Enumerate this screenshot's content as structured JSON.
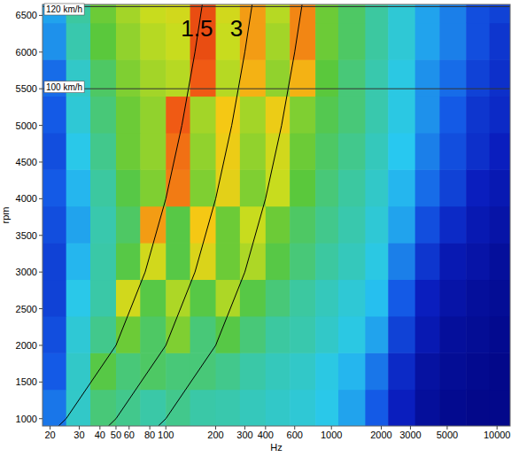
{
  "chart_data": {
    "type": "heatmap",
    "x_label": "Hz",
    "y_label": "rpm",
    "log": "x",
    "grid": false,
    "xlim": [
      18,
      12000
    ],
    "ylim": [
      900,
      6650
    ],
    "xticks": [
      20,
      30,
      40,
      50,
      60,
      80,
      100,
      200,
      300,
      400,
      600,
      1000,
      2000,
      3000,
      5000,
      10000
    ],
    "yticks": [
      1000,
      1500,
      2000,
      2500,
      3000,
      3500,
      4000,
      4500,
      5000,
      5500,
      6000,
      6500
    ],
    "heatmap": {
      "x_edges": [
        18,
        25,
        35,
        50,
        70,
        100,
        140,
        200,
        280,
        400,
        560,
        800,
        1100,
        1600,
        2200,
        3200,
        4500,
        6500,
        9000,
        12000
      ],
      "y_edges": [
        900,
        1400,
        1900,
        2400,
        2900,
        3400,
        3900,
        4400,
        4900,
        5400,
        5900,
        6400,
        6650
      ],
      "color_range": [
        0,
        100
      ],
      "cells": [
        [
          25,
          40,
          50,
          48,
          45,
          48,
          45,
          44,
          42,
          40,
          38,
          35,
          30,
          22,
          12,
          6,
          4,
          3,
          3
        ],
        [
          22,
          40,
          55,
          50,
          52,
          50,
          50,
          48,
          45,
          42,
          40,
          36,
          32,
          25,
          14,
          7,
          5,
          4,
          3
        ],
        [
          20,
          38,
          48,
          58,
          52,
          60,
          50,
          55,
          50,
          46,
          44,
          40,
          36,
          30,
          18,
          10,
          6,
          5,
          4
        ],
        [
          18,
          35,
          45,
          70,
          55,
          65,
          55,
          65,
          55,
          50,
          46,
          42,
          38,
          33,
          22,
          12,
          8,
          6,
          5
        ],
        [
          18,
          32,
          45,
          55,
          70,
          55,
          72,
          58,
          65,
          55,
          50,
          46,
          42,
          36,
          26,
          16,
          10,
          8,
          6
        ],
        [
          20,
          30,
          44,
          52,
          82,
          55,
          78,
          58,
          68,
          58,
          52,
          48,
          44,
          38,
          30,
          20,
          14,
          10,
          8
        ],
        [
          22,
          32,
          46,
          55,
          60,
          85,
          60,
          74,
          60,
          68,
          56,
          50,
          46,
          40,
          32,
          24,
          18,
          12,
          10
        ],
        [
          20,
          35,
          48,
          58,
          62,
          86,
          62,
          76,
          62,
          70,
          58,
          52,
          48,
          42,
          34,
          26,
          20,
          15,
          12
        ],
        [
          22,
          38,
          50,
          58,
          62,
          88,
          64,
          78,
          64,
          76,
          60,
          54,
          50,
          44,
          36,
          28,
          22,
          16,
          14
        ],
        [
          24,
          40,
          52,
          60,
          64,
          66,
          88,
          66,
          80,
          62,
          80,
          56,
          50,
          44,
          36,
          28,
          24,
          18,
          15
        ],
        [
          28,
          44,
          56,
          62,
          66,
          68,
          90,
          68,
          82,
          64,
          84,
          58,
          52,
          46,
          38,
          30,
          26,
          20,
          16
        ],
        [
          30,
          46,
          58,
          64,
          68,
          70,
          90,
          70,
          82,
          66,
          84,
          58,
          52,
          46,
          38,
          30,
          26,
          20,
          18
        ]
      ]
    },
    "series": [
      {
        "type": "line",
        "color": "#000000",
        "x": [
          22.5,
          25,
          50,
          75,
          100,
          125,
          150,
          166
        ],
        "values": [
          900,
          1000,
          2000,
          3000,
          4000,
          5000,
          6000,
          6650
        ]
      },
      {
        "type": "line",
        "color": "#000000",
        "x": [
          45,
          50,
          100,
          150,
          200,
          250,
          300,
          332
        ],
        "values": [
          900,
          1000,
          2000,
          3000,
          4000,
          5000,
          6000,
          6650
        ]
      },
      {
        "type": "line",
        "color": "#000000",
        "x": [
          90,
          100,
          200,
          300,
          400,
          500,
          600,
          665
        ],
        "values": [
          900,
          1000,
          2000,
          3000,
          4000,
          5000,
          6000,
          6650
        ]
      }
    ],
    "reference_lines": [
      {
        "label": "120 km/h",
        "value": 6620
      },
      {
        "label": "100 km/h",
        "value": 5500
      }
    ],
    "annotations": [
      {
        "text": "1.5",
        "x": 154,
        "y": 6330
      },
      {
        "text": "3",
        "x": 267,
        "y": 6330
      }
    ]
  }
}
